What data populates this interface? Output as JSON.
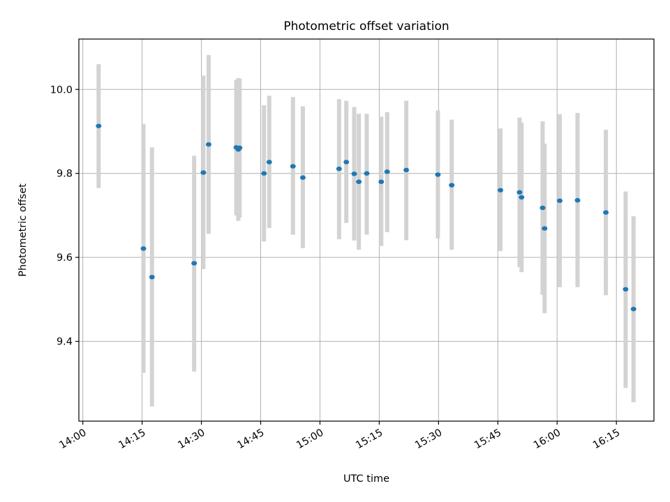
{
  "chart_data": {
    "type": "scatter",
    "title": "Photometric offset variation",
    "xlabel": "UTC time",
    "ylabel": "Photometric offset",
    "xlim": [
      "13:59",
      "16:24:30"
    ],
    "ylim": [
      9.21,
      10.12
    ],
    "x_ticks": [
      "14:00",
      "14:15",
      "14:30",
      "14:45",
      "15:00",
      "15:15",
      "15:30",
      "15:45",
      "16:00",
      "16:15"
    ],
    "y_ticks": [
      "9.4",
      "9.6",
      "9.8",
      "10.0"
    ],
    "grid": true,
    "marker_color": "#1f77b4",
    "errorbar_color": "#d3d3d3",
    "series": [
      {
        "points": [
          {
            "t": "14:04:00",
            "y": 9.913,
            "lo": 9.765,
            "hi": 10.06
          },
          {
            "t": "14:15:20",
            "y": 9.621,
            "lo": 9.325,
            "hi": 9.918
          },
          {
            "t": "14:17:30",
            "y": 9.553,
            "lo": 9.245,
            "hi": 9.862
          },
          {
            "t": "14:28:10",
            "y": 9.586,
            "lo": 9.328,
            "hi": 9.842
          },
          {
            "t": "14:30:30",
            "y": 9.802,
            "lo": 9.572,
            "hi": 10.033
          },
          {
            "t": "14:31:50",
            "y": 9.869,
            "lo": 9.656,
            "hi": 10.082
          },
          {
            "t": "14:38:50",
            "y": 9.862,
            "lo": 9.7,
            "hi": 10.023
          },
          {
            "t": "14:39:20",
            "y": 9.857,
            "lo": 9.687,
            "hi": 10.027
          },
          {
            "t": "14:39:40",
            "y": 9.861,
            "lo": 9.695,
            "hi": 10.026
          },
          {
            "t": "14:45:50",
            "y": 9.8,
            "lo": 9.638,
            "hi": 9.962
          },
          {
            "t": "14:47:10",
            "y": 9.827,
            "lo": 9.67,
            "hi": 9.985
          },
          {
            "t": "14:53:10",
            "y": 9.817,
            "lo": 9.654,
            "hi": 9.982
          },
          {
            "t": "14:55:40",
            "y": 9.79,
            "lo": 9.622,
            "hi": 9.96
          },
          {
            "t": "15:04:50",
            "y": 9.811,
            "lo": 9.643,
            "hi": 9.977
          },
          {
            "t": "15:06:40",
            "y": 9.827,
            "lo": 9.682,
            "hi": 9.973
          },
          {
            "t": "15:08:40",
            "y": 9.799,
            "lo": 9.64,
            "hi": 9.958
          },
          {
            "t": "15:09:50",
            "y": 9.78,
            "lo": 9.618,
            "hi": 9.942
          },
          {
            "t": "15:11:50",
            "y": 9.8,
            "lo": 9.654,
            "hi": 9.942
          },
          {
            "t": "15:15:30",
            "y": 9.78,
            "lo": 9.627,
            "hi": 9.935
          },
          {
            "t": "15:17:00",
            "y": 9.804,
            "lo": 9.66,
            "hi": 9.946
          },
          {
            "t": "15:21:50",
            "y": 9.808,
            "lo": 9.641,
            "hi": 9.973
          },
          {
            "t": "15:29:50",
            "y": 9.797,
            "lo": 9.645,
            "hi": 9.95
          },
          {
            "t": "15:33:20",
            "y": 9.772,
            "lo": 9.618,
            "hi": 9.928
          },
          {
            "t": "15:45:40",
            "y": 9.76,
            "lo": 9.615,
            "hi": 9.907
          },
          {
            "t": "15:50:30",
            "y": 9.755,
            "lo": 9.577,
            "hi": 9.933
          },
          {
            "t": "15:51:00",
            "y": 9.743,
            "lo": 9.565,
            "hi": 9.921
          },
          {
            "t": "15:56:20",
            "y": 9.718,
            "lo": 9.511,
            "hi": 9.924
          },
          {
            "t": "15:56:50",
            "y": 9.669,
            "lo": 9.467,
            "hi": 9.871
          },
          {
            "t": "16:00:40",
            "y": 9.735,
            "lo": 9.529,
            "hi": 9.941
          },
          {
            "t": "16:05:10",
            "y": 9.736,
            "lo": 9.529,
            "hi": 9.944
          },
          {
            "t": "16:12:20",
            "y": 9.707,
            "lo": 9.51,
            "hi": 9.904
          },
          {
            "t": "16:17:20",
            "y": 9.524,
            "lo": 9.289,
            "hi": 9.757
          },
          {
            "t": "16:19:20",
            "y": 9.477,
            "lo": 9.255,
            "hi": 9.698
          }
        ]
      }
    ]
  }
}
